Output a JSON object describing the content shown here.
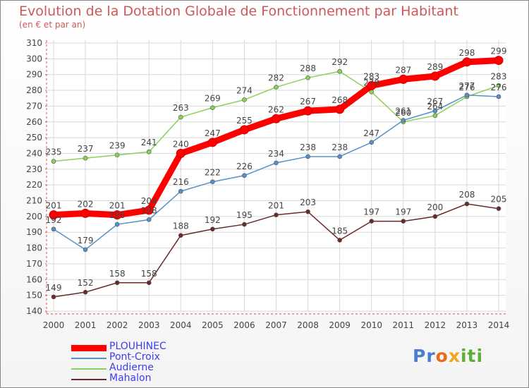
{
  "title": "Evolution de la Dotation Globale de Fonctionnement par Habitant",
  "subtitle": "(en € et par an)",
  "logo": {
    "text": "Proxiti"
  },
  "chart_data": {
    "type": "line",
    "title": "Evolution de la Dotation Globale de Fonctionnement par Habitant",
    "subtitle": "(en € et par an)",
    "xlabel": "",
    "ylabel": "",
    "ylim": [
      140,
      310
    ],
    "yticks": [
      140,
      150,
      160,
      170,
      180,
      190,
      200,
      210,
      220,
      230,
      240,
      250,
      260,
      270,
      280,
      290,
      300,
      310
    ],
    "grid": true,
    "legend_position": "bottom-left",
    "x": [
      "2000",
      "2001",
      "2002",
      "2003",
      "2004",
      "2005",
      "2006",
      "2007",
      "2008",
      "2009",
      "2010",
      "2011",
      "2012",
      "2013",
      "2014"
    ],
    "series": [
      {
        "name": "PLOUHINEC",
        "color": "#ff0000",
        "values": [
          201,
          202,
          201,
          204,
          240,
          247,
          255,
          262,
          267,
          268,
          283,
          287,
          289,
          298,
          299
        ]
      },
      {
        "name": "Pont-Croix",
        "color": "#5591c8",
        "values": [
          192,
          179,
          195,
          198,
          216,
          222,
          226,
          234,
          238,
          238,
          247,
          261,
          267,
          277,
          276
        ]
      },
      {
        "name": "Audierne",
        "color": "#88d257",
        "values": [
          235,
          237,
          239,
          241,
          263,
          269,
          274,
          282,
          288,
          292,
          279,
          260,
          264,
          276,
          283
        ]
      },
      {
        "name": "Mahalon",
        "color": "#6b2a2a",
        "values": [
          149,
          152,
          158,
          158,
          188,
          192,
          195,
          201,
          203,
          185,
          197,
          197,
          200,
          208,
          205
        ]
      }
    ]
  }
}
